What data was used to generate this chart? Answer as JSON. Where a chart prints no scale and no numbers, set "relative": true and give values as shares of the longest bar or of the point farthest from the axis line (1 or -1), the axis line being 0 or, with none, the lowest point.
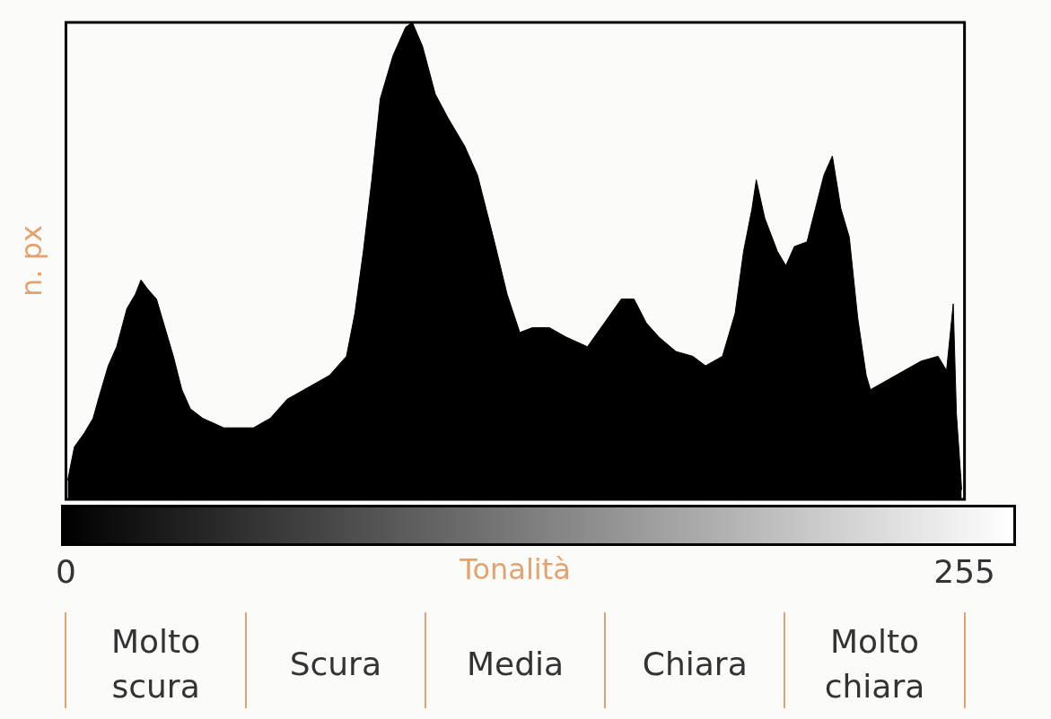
{
  "chart_data": {
    "type": "area",
    "relative": true,
    "xlabel": "Tonalità",
    "ylabel": "n. px",
    "xlim": [
      0,
      255
    ],
    "xticks": [
      0,
      255
    ],
    "legend": false,
    "marker": "none",
    "x": [
      0.5,
      2.4,
      5.3,
      7.7,
      9.6,
      12.0,
      14.4,
      17.3,
      19.7,
      21.3,
      23.3,
      25.7,
      28.1,
      30.5,
      32.9,
      35.3,
      38.8,
      44.8,
      53.2,
      58.0,
      62.8,
      67.6,
      74.8,
      79.6,
      82.0,
      84.4,
      86.8,
      89.2,
      92.8,
      96.4,
      98.3,
      101.2,
      104.8,
      108.4,
      113.2,
      116.8,
      119.2,
      121.6,
      125.2,
      128.8,
      132.4,
      137.2,
      142.0,
      148.0,
      152.8,
      157.6,
      161.2,
      164.7,
      168.3,
      173.1,
      177.9,
      181.5,
      186.3,
      189.9,
      192.3,
      194.7,
      195.9,
      198.3,
      201.9,
      204.3,
      206.7,
      210.3,
      212.7,
      215.1,
      217.5,
      219.9,
      222.3,
      224.7,
      227.1,
      228.3,
      233.1,
      237.9,
      242.7,
      247.5,
      249.9,
      251.8,
      252.7,
      254.2
    ],
    "series": [
      {
        "color": "#000000",
        "values": [
          0.04,
          0.11,
          0.14,
          0.17,
          0.22,
          0.28,
          0.32,
          0.4,
          0.43,
          0.46,
          0.44,
          0.42,
          0.36,
          0.3,
          0.23,
          0.19,
          0.17,
          0.15,
          0.15,
          0.17,
          0.21,
          0.23,
          0.26,
          0.3,
          0.39,
          0.52,
          0.67,
          0.84,
          0.93,
          0.99,
          1,
          0.95,
          0.85,
          0.8,
          0.74,
          0.68,
          0.61,
          0.54,
          0.43,
          0.35,
          0.36,
          0.36,
          0.34,
          0.32,
          0.37,
          0.42,
          0.42,
          0.37,
          0.34,
          0.31,
          0.3,
          0.28,
          0.3,
          0.39,
          0.52,
          0.61,
          0.67,
          0.59,
          0.52,
          0.49,
          0.53,
          0.54,
          0.61,
          0.68,
          0.72,
          0.61,
          0.55,
          0.38,
          0.26,
          0.23,
          0.25,
          0.27,
          0.29,
          0.3,
          0.27,
          0.41,
          0.18,
          0.02
        ]
      }
    ],
    "annotations": [
      "Molto scura",
      "Scura",
      "Media",
      "Chiara",
      "Molto chiara"
    ]
  }
}
